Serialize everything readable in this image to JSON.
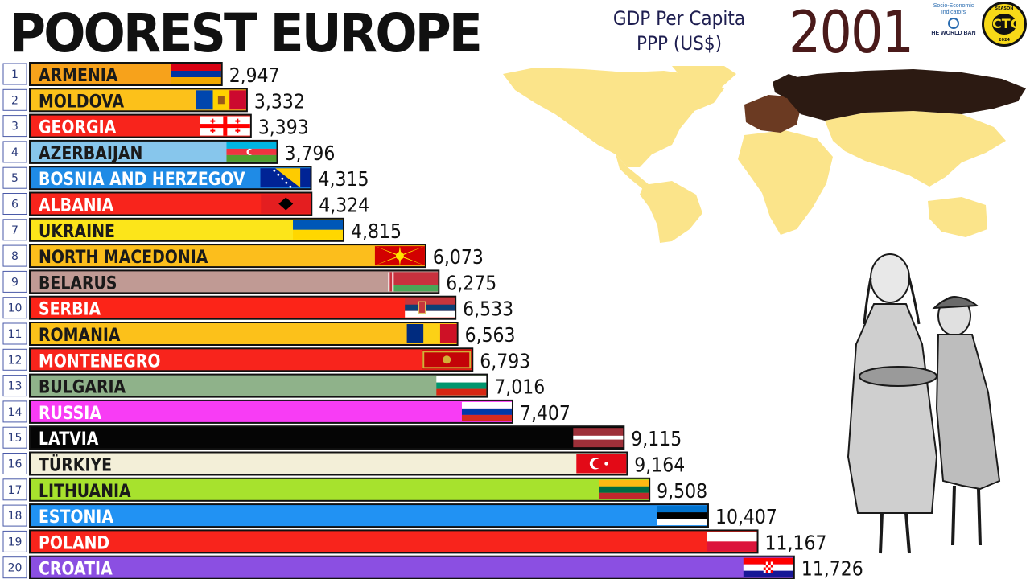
{
  "header": {
    "title": "POOREST EUROPE",
    "subtitle_line1": "GDP Per Capita",
    "subtitle_line2": "PPP (US$)",
    "year": "2001",
    "source_line1": "Socio-Economic",
    "source_line2": "Indicators",
    "source_line3": "HE WORLD BAN",
    "badge_text": "CTG",
    "badge_top": "SEASON",
    "badge_bottom": "2024"
  },
  "colors": {
    "map_land": "#fbe48a",
    "map_europe_dark": "#2c1a12",
    "map_europe_mid": "#6b3a22",
    "bar_border": "#111111",
    "rank_box_border": "#4a5aa8"
  },
  "chart_data": {
    "type": "bar",
    "orientation": "horizontal",
    "title": "POOREST EUROPE",
    "subtitle": "GDP Per Capita PPP (US$)",
    "year": "2001",
    "categories": [
      "ARMENIA",
      "MOLDOVA",
      "GEORGIA",
      "AZERBAIJAN",
      "BOSNIA AND HERZEGOV",
      "ALBANIA",
      "UKRAINE",
      "NORTH MACEDONIA",
      "BELARUS",
      "SERBIA",
      "ROMANIA",
      "MONTENEGRO",
      "BULGARIA",
      "RUSSIA",
      "LATVIA",
      "TÜRKIYE",
      "LITHUANIA",
      "ESTONIA",
      "POLAND",
      "CROATIA"
    ],
    "ranks": [
      "1",
      "2",
      "3",
      "4",
      "5",
      "6",
      "7",
      "8",
      "9",
      "10",
      "11",
      "12",
      "13",
      "14",
      "15",
      "16",
      "17",
      "18",
      "19",
      "20"
    ],
    "values": [
      2947,
      3332,
      3393,
      3796,
      4315,
      4324,
      4815,
      6073,
      6275,
      6533,
      6563,
      6793,
      7016,
      7407,
      9115,
      9164,
      9508,
      10407,
      11167,
      11726
    ],
    "value_labels": [
      "2,947",
      "3,332",
      "3,393",
      "3,796",
      "4,315",
      "4,324",
      "4,815",
      "6,073",
      "6,275",
      "6,533",
      "6,563",
      "6,793",
      "7,016",
      "7,407",
      "9,115",
      "9,164",
      "9,508",
      "10,407",
      "11,167",
      "11,726"
    ],
    "bar_colors": [
      "#f7a21b",
      "#fcc11a",
      "#f8241c",
      "#87c6ec",
      "#1f8be6",
      "#f8241c",
      "#fce51a",
      "#fcbe1c",
      "#c09a94",
      "#fc2418",
      "#fcc11a",
      "#f8241c",
      "#8fb28a",
      "#f83cf5",
      "#050505",
      "#f3efd8",
      "#a7e22d",
      "#2192f3",
      "#f8241c",
      "#8b4fe2"
    ],
    "label_colors": [
      "#1a1a1a",
      "#1a1a1a",
      "#ffffff",
      "#1a1a1a",
      "#ffffff",
      "#ffffff",
      "#1a1a1a",
      "#1a1a1a",
      "#1a1a1a",
      "#ffffff",
      "#1a1a1a",
      "#ffffff",
      "#1a1a1a",
      "#ffffff",
      "#ffffff",
      "#1a1a1a",
      "#1a1a1a",
      "#ffffff",
      "#ffffff",
      "#ffffff"
    ],
    "flags": [
      "armenia",
      "moldova",
      "georgia",
      "azerbaijan",
      "bosnia",
      "albania",
      "ukraine",
      "north-macedonia",
      "belarus",
      "serbia",
      "romania",
      "montenegro",
      "bulgaria",
      "russia",
      "latvia",
      "turkiye",
      "lithuania",
      "estonia",
      "poland",
      "croatia"
    ]
  }
}
